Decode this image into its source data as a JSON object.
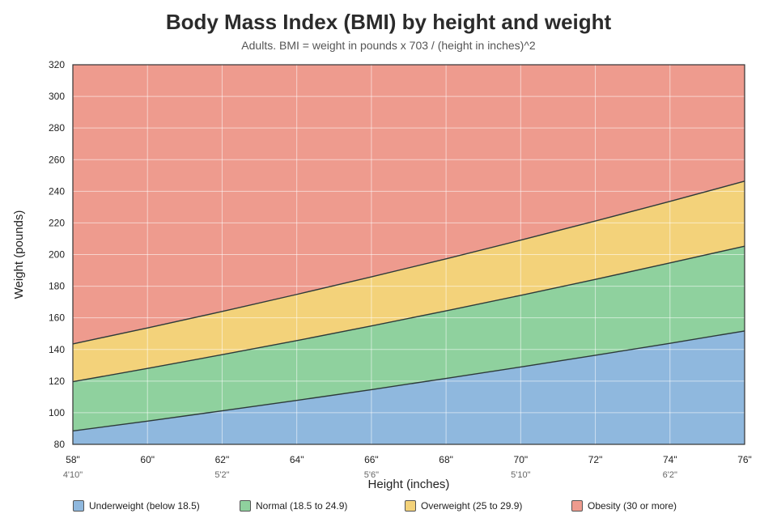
{
  "chart_data": {
    "type": "area",
    "title": "Body Mass Index (BMI) by height and weight",
    "subtitle": "Adults. BMI = weight in pounds x 703 / (height in inches)^2",
    "xlabel": "Height (inches)",
    "ylabel": "Weight (pounds)",
    "xlim": [
      58,
      76
    ],
    "ylim": [
      80,
      320
    ],
    "x_ticks": [
      {
        "value": 58,
        "label": "58\"",
        "feet": "4'10\""
      },
      {
        "value": 60,
        "label": "60\"",
        "feet": ""
      },
      {
        "value": 62,
        "label": "62\"",
        "feet": "5'2\""
      },
      {
        "value": 64,
        "label": "64\"",
        "feet": ""
      },
      {
        "value": 66,
        "label": "66\"",
        "feet": "5'6\""
      },
      {
        "value": 68,
        "label": "68\"",
        "feet": ""
      },
      {
        "value": 70,
        "label": "70\"",
        "feet": "5'10\""
      },
      {
        "value": 72,
        "label": "72\"",
        "feet": ""
      },
      {
        "value": 74,
        "label": "74\"",
        "feet": "6'2\""
      },
      {
        "value": 76,
        "label": "76\"",
        "feet": ""
      }
    ],
    "y_ticks": [
      80,
      100,
      120,
      140,
      160,
      180,
      200,
      220,
      240,
      260,
      280,
      300,
      320
    ],
    "x": [
      58,
      60,
      62,
      64,
      66,
      68,
      70,
      72,
      74,
      76
    ],
    "boundaries": [
      {
        "bmi": 18.5,
        "values": [
          88.5,
          94.7,
          101.2,
          107.8,
          114.6,
          121.7,
          128.9,
          136.3,
          143.9,
          151.7
        ]
      },
      {
        "bmi": 25,
        "values": [
          119.6,
          128.0,
          136.7,
          145.6,
          154.9,
          164.4,
          174.2,
          184.3,
          194.7,
          205.3
        ]
      },
      {
        "bmi": 30,
        "values": [
          143.5,
          153.6,
          164.0,
          174.8,
          185.9,
          197.3,
          209.1,
          221.2,
          233.6,
          246.4
        ]
      }
    ],
    "series": [
      {
        "name": "Underweight (below 18.5)",
        "color": "#8fb8de"
      },
      {
        "name": "Normal (18.5 to 24.9)",
        "color": "#8fd19e"
      },
      {
        "name": "Overweight (25 to 29.9)",
        "color": "#f3d27a"
      },
      {
        "name": "Obesity (30 or more)",
        "color": "#ee9b8e"
      }
    ],
    "grid": true,
    "legend_position": "bottom"
  }
}
